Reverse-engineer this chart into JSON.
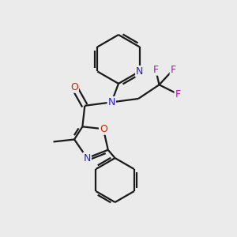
{
  "bg_color": "#ebebeb",
  "bond_color": "#1a1a1a",
  "N_color": "#2222cc",
  "O_color": "#cc2200",
  "F_color": "#cc00cc",
  "line_width": 1.6,
  "figsize": [
    3.0,
    3.0
  ],
  "dpi": 100,
  "xlim": [
    0,
    10
  ],
  "ylim": [
    0,
    10
  ]
}
